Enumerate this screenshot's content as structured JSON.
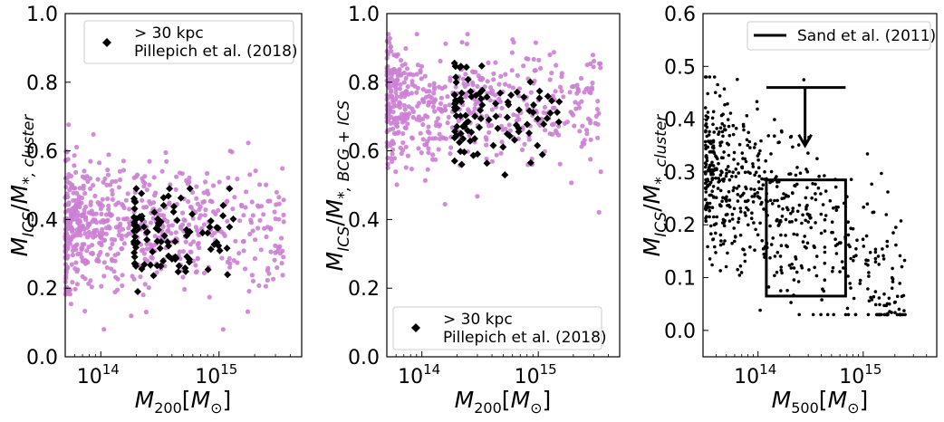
{
  "colors": {
    "simulation": "#cc7fd4",
    "observed": "#000000",
    "annotation": "#000000"
  },
  "chart_data": [
    {
      "type": "scatter",
      "panel": "left",
      "xlabel": "M200[M⊙]",
      "ylabel": "M_ICS/M*,cluster",
      "xscale": "log",
      "xlim": [
        50000000000000,
        5000000000000000
      ],
      "ylim": [
        0,
        1
      ],
      "yticks": [
        "0.0",
        "0.2",
        "0.4",
        "0.6",
        "0.8",
        "1.0"
      ],
      "xticks": [
        {
          "base": "10",
          "exp": "14",
          "value": 100000000000000
        },
        {
          "base": "10",
          "exp": "15",
          "value": 1000000000000000
        }
      ],
      "legend": {
        "position": "top-right",
        "line1": "> 30 kpc",
        "line2": "Pillepich et al. (2018)"
      },
      "series": [
        {
          "name": "simulation",
          "marker": "circle",
          "color": "#cc7fd4",
          "count": 700,
          "log10_x_range": [
            13.7,
            15.55
          ],
          "y_range": [
            0.08,
            0.68
          ],
          "y_center": 0.38,
          "y_sigma": 0.09
        },
        {
          "name": "Pillepich et al. (2018)",
          "marker": "diamond",
          "color": "#000000",
          "count": 100,
          "log10_x_range": [
            14.28,
            15.15
          ],
          "y_range": [
            0.19,
            0.49
          ],
          "y_center": 0.35,
          "y_sigma": 0.07
        }
      ]
    },
    {
      "type": "scatter",
      "panel": "middle",
      "xlabel": "M200[M⊙]",
      "ylabel": "M_ICS/M*,BCG+ICS",
      "xscale": "log",
      "xlim": [
        50000000000000,
        5000000000000000
      ],
      "ylim": [
        0,
        1
      ],
      "yticks": [
        "0.0",
        "0.2",
        "0.4",
        "0.6",
        "0.8",
        "1.0"
      ],
      "xticks": [
        {
          "base": "10",
          "exp": "14",
          "value": 100000000000000
        },
        {
          "base": "10",
          "exp": "15",
          "value": 1000000000000000
        }
      ],
      "legend": {
        "position": "bottom-right",
        "line1": "> 30 kpc",
        "line2": "Pillepich et al. (2018)"
      },
      "series": [
        {
          "name": "simulation",
          "marker": "circle",
          "color": "#cc7fd4",
          "count": 550,
          "log10_x_range": [
            13.7,
            15.55
          ],
          "y_range": [
            0.15,
            0.94
          ],
          "y_center": 0.74,
          "y_sigma": 0.09
        },
        {
          "name": "Pillepich et al. (2018)",
          "marker": "diamond",
          "color": "#000000",
          "count": 100,
          "log10_x_range": [
            14.28,
            15.2
          ],
          "y_range": [
            0.53,
            0.88
          ],
          "y_center": 0.7,
          "y_sigma": 0.07
        }
      ]
    },
    {
      "type": "scatter",
      "panel": "right",
      "xlabel": "M500[M⊙]",
      "ylabel": "M_ICS/M*,cluster",
      "xscale": "log",
      "xlim": [
        30000000000000,
        5000000000000000
      ],
      "ylim": [
        -0.05,
        0.6
      ],
      "yticks": [
        "0.0",
        "0.1",
        "0.2",
        "0.3",
        "0.4",
        "0.5",
        "0.6"
      ],
      "xticks": [
        {
          "base": "10",
          "exp": "14",
          "value": 100000000000000
        },
        {
          "base": "10",
          "exp": "15",
          "value": 1000000000000000
        }
      ],
      "legend": {
        "position": "top-right",
        "line1": "Sand et al. (2011)"
      },
      "series": [
        {
          "name": "simulation",
          "marker": "dot",
          "color": "#000000",
          "count": 650,
          "log10_x_range": [
            13.5,
            15.4
          ],
          "y_range": [
            0.03,
            0.48
          ],
          "y_center": 0.2,
          "y_sigma": 0.08
        }
      ],
      "sand_box": {
        "x": [
          120000000000000,
          680000000000000
        ],
        "y": [
          0.065,
          0.285
        ]
      },
      "sand_upper_limit": {
        "x": [
          120000000000000,
          680000000000000
        ],
        "y": 0.46,
        "arrow_x": 280000000000000,
        "arrow_to_y": 0.35
      }
    }
  ]
}
